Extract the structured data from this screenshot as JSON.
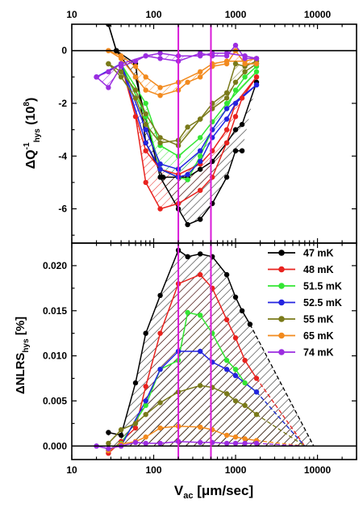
{
  "chart_data": [
    {
      "type": "line",
      "panel": "top",
      "ylabel": "ΔQ⁻¹hys (10⁸)",
      "x_scale": "log",
      "xlim": [
        10,
        30000
      ],
      "ylim": [
        -7.3,
        1.0
      ],
      "yticks": [
        0,
        -2,
        -4,
        -6
      ],
      "yticklabels": [
        "0",
        "-2",
        "-4",
        "-6"
      ],
      "xticks": [
        10,
        100,
        1000,
        10000
      ],
      "xticklabels": [
        "10",
        "100",
        "1000",
        "10000"
      ],
      "vlines": [
        200,
        500
      ],
      "vline_color": "#d81bd8",
      "hline": 0,
      "grid": false,
      "series": [
        {
          "name": "47 mK",
          "color": "#000000",
          "up_x": [
            28,
            35,
            60,
            120,
            200,
            260,
            370,
            520,
            780,
            1000,
            1200
          ],
          "up_y": [
            1.0,
            0.0,
            -1.0,
            -4.8,
            -6.0,
            -6.6,
            -6.4,
            -5.8,
            -4.8,
            -3.8,
            -3.8
          ],
          "down_x": [
            28,
            35,
            60,
            80,
            130,
            200,
            260,
            370,
            520,
            780,
            1000,
            1200,
            1800
          ],
          "down_y": [
            1.0,
            0.0,
            -0.5,
            -3.5,
            -4.8,
            -4.8,
            -4.8,
            -4.5,
            -4.2,
            -3.5,
            -3.0,
            -2.8,
            -1.2
          ]
        },
        {
          "name": "48 mK",
          "color": "#e8231f",
          "up_x": [
            40,
            60,
            80,
            120,
            200,
            370,
            520,
            780,
            1000,
            1200,
            1800
          ],
          "up_y": [
            -0.5,
            -2.5,
            -5.0,
            -6.0,
            -5.8,
            -5.3,
            -4.8,
            -3.5,
            -2.5,
            -1.8,
            -1.0
          ],
          "down_x": [
            40,
            80,
            120,
            200,
            370,
            520,
            780,
            1000,
            1800
          ],
          "down_y": [
            -0.5,
            -3.8,
            -4.5,
            -4.7,
            -4.3,
            -3.8,
            -3.0,
            -2.0,
            -1.0
          ]
        },
        {
          "name": "51.5 mK",
          "color": "#33e633",
          "up_x": [
            40,
            80,
            120,
            200,
            260,
            370,
            520,
            780,
            1000,
            1300,
            1800
          ],
          "up_y": [
            -0.5,
            -2.5,
            -4.5,
            -4.8,
            -4.9,
            -4.0,
            -3.0,
            -2.2,
            -1.5,
            -1.0,
            -0.6
          ],
          "down_x": [
            40,
            80,
            120,
            200,
            370,
            520,
            780,
            1800
          ],
          "down_y": [
            -0.5,
            -2.0,
            -3.6,
            -4.0,
            -3.3,
            -2.7,
            -2.0,
            -0.8
          ]
        },
        {
          "name": "52.5 mK",
          "color": "#2424e0",
          "up_x": [
            20,
            40,
            80,
            120,
            200,
            260,
            370,
            520,
            780,
            1000,
            1800
          ],
          "up_y": [
            -1.0,
            -0.5,
            -3.5,
            -4.5,
            -4.8,
            -4.7,
            -4.2,
            -3.3,
            -2.6,
            -2.0,
            -1.3
          ],
          "down_x": [
            20,
            40,
            80,
            120,
            200,
            370,
            520,
            780,
            1800
          ],
          "down_y": [
            -1.0,
            -0.5,
            -3.0,
            -4.3,
            -4.5,
            -3.8,
            -3.0,
            -2.2,
            -1.3
          ]
        },
        {
          "name": "55 mK",
          "color": "#7a7a1a",
          "up_x": [
            28,
            40,
            60,
            80,
            120,
            200,
            260,
            370,
            520,
            780,
            1000,
            1300,
            1800
          ],
          "up_y": [
            -0.5,
            -1.0,
            -1.8,
            -2.8,
            -3.5,
            -3.4,
            -2.9,
            -2.6,
            -2.2,
            -1.8,
            -1.2,
            -0.8,
            -0.5
          ],
          "down_x": [
            28,
            40,
            60,
            80,
            120,
            200,
            370,
            520,
            780,
            1000,
            1300,
            1800
          ],
          "down_y": [
            -0.5,
            -0.8,
            -1.5,
            -2.4,
            -3.3,
            -3.6,
            -2.6,
            -2.0,
            -1.6,
            -0.5,
            -0.6,
            -0.4
          ]
        },
        {
          "name": "65 mK",
          "color": "#f28a1e",
          "up_x": [
            28,
            40,
            60,
            80,
            120,
            200,
            260,
            370,
            520,
            780,
            1000,
            1300,
            1800
          ],
          "up_y": [
            0.0,
            -0.3,
            -1.0,
            -1.5,
            -1.7,
            -1.5,
            -1.2,
            -1.0,
            -0.6,
            -0.5,
            0.0,
            -0.5,
            -0.5
          ],
          "down_x": [
            28,
            40,
            60,
            80,
            120,
            200,
            370,
            520,
            780,
            1300,
            1800
          ],
          "down_y": [
            0.0,
            -0.2,
            -0.6,
            -1.0,
            -1.4,
            -1.2,
            -0.8,
            -0.5,
            -0.4,
            -0.4,
            -0.3
          ]
        },
        {
          "name": "74 mK",
          "color": "#9b2de0",
          "up_x": [
            20,
            28,
            40,
            60,
            80,
            120,
            200,
            370,
            520,
            780,
            1000,
            1300,
            1800
          ],
          "up_y": [
            -1.0,
            -1.4,
            -0.6,
            -0.4,
            -0.2,
            -0.3,
            -0.4,
            -0.1,
            -0.2,
            -0.2,
            0.2,
            -0.3,
            -0.3
          ],
          "down_x": [
            20,
            28,
            40,
            80,
            120,
            200,
            370,
            520,
            780,
            1300,
            1800
          ],
          "down_y": [
            -1.0,
            -0.8,
            -0.5,
            -0.2,
            -0.1,
            -0.2,
            -0.2,
            -0.1,
            -0.1,
            -0.2,
            -0.3
          ]
        }
      ]
    },
    {
      "type": "line",
      "panel": "bottom",
      "xlabel": "Vac [μm/sec]",
      "ylabel": "ΔNLRShys [%]",
      "x_scale": "log",
      "xlim": [
        10,
        30000
      ],
      "ylim": [
        -0.0015,
        0.0225
      ],
      "yticks": [
        0.0,
        0.005,
        0.01,
        0.015,
        0.02
      ],
      "yticklabels": [
        "0.000",
        "0.005",
        "0.010",
        "0.015",
        "0.020"
      ],
      "xticks": [
        10,
        100,
        1000,
        10000
      ],
      "xticklabels": [
        "10",
        "100",
        "1000",
        "10000"
      ],
      "vlines": [
        200,
        500
      ],
      "vline_color": "#d81bd8",
      "hline": 0,
      "grid": false,
      "legend": {
        "placement": "top-right",
        "entries": [
          "47 mK",
          "48 mK",
          "51.5 mK",
          "52.5 mK",
          "55 mK",
          "65 mK",
          "74 mK"
        ]
      },
      "series": [
        {
          "name": "47 mK",
          "color": "#000000",
          "x": [
            28,
            40,
            60,
            80,
            120,
            200,
            260,
            370,
            520,
            780,
            1000,
            1200,
            1500
          ],
          "y": [
            0.0015,
            0.0012,
            0.007,
            0.0125,
            0.0167,
            0.0217,
            0.021,
            0.0213,
            0.021,
            0.019,
            0.0165,
            0.015,
            0.0135
          ],
          "dashed_to": [
            9000,
            0.0
          ]
        },
        {
          "name": "48 mK",
          "color": "#e8231f",
          "x": [
            28,
            40,
            60,
            80,
            120,
            200,
            370,
            520,
            780,
            1000,
            1300,
            1800
          ],
          "y": [
            -0.0008,
            0.0005,
            0.002,
            0.0066,
            0.0125,
            0.018,
            0.019,
            0.0175,
            0.014,
            0.012,
            0.0095,
            0.0075
          ],
          "dashed_to": [
            7000,
            0.0
          ]
        },
        {
          "name": "51.5 mK",
          "color": "#33e633",
          "x": [
            28,
            40,
            80,
            120,
            200,
            260,
            370,
            520,
            780,
            1000,
            1300,
            1800
          ],
          "y": [
            -0.0005,
            0.0003,
            0.0045,
            0.0085,
            0.0095,
            0.0148,
            0.0145,
            0.0125,
            0.0095,
            0.0085,
            0.007,
            0.006
          ],
          "dashed_to": [
            7000,
            0.0
          ]
        },
        {
          "name": "52.5 mK",
          "color": "#2424e0",
          "x": [
            20,
            40,
            80,
            120,
            200,
            370,
            520,
            780,
            1000,
            1800
          ],
          "y": [
            0.0,
            0.0,
            0.005,
            0.0085,
            0.0105,
            0.0105,
            0.0093,
            0.0085,
            0.0078,
            0.006
          ],
          "dashed_to": [
            7000,
            0.0
          ]
        },
        {
          "name": "55 mK",
          "color": "#7a7a1a",
          "x": [
            28,
            40,
            60,
            80,
            120,
            200,
            370,
            520,
            780,
            1000,
            1300,
            1800
          ],
          "y": [
            0.0003,
            0.0018,
            0.0025,
            0.0035,
            0.0048,
            0.006,
            0.0067,
            0.0065,
            0.0058,
            0.005,
            0.0045,
            0.0035
          ],
          "dashed_to": [
            7000,
            0.0
          ]
        },
        {
          "name": "65 mK",
          "color": "#f28a1e",
          "x": [
            28,
            40,
            60,
            80,
            120,
            200,
            370,
            520,
            780,
            1000,
            1300,
            1800
          ],
          "y": [
            -0.0005,
            0.0002,
            0.0005,
            0.001,
            0.002,
            0.0022,
            0.0021,
            0.0018,
            0.0012,
            0.001,
            0.0008,
            0.0006
          ],
          "dashed_to": [
            7000,
            0.0
          ]
        },
        {
          "name": "74 mK",
          "color": "#9b2de0",
          "x": [
            20,
            28,
            40,
            60,
            80,
            120,
            200,
            370,
            520,
            780,
            1000,
            1300,
            1800
          ],
          "y": [
            0.0,
            -0.0003,
            0.0,
            0.0004,
            0.0003,
            0.0003,
            0.0005,
            0.0004,
            0.0004,
            0.0003,
            0.0003,
            0.0003,
            0.0003
          ],
          "dashed_to": [
            7000,
            0.0
          ]
        }
      ]
    }
  ]
}
